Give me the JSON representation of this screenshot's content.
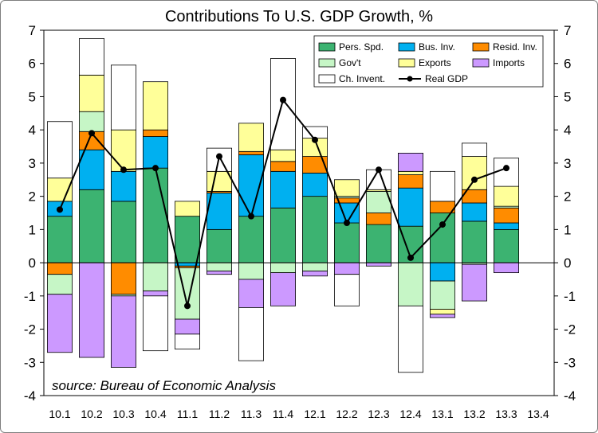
{
  "chart_data": {
    "type": "bar",
    "stacked": true,
    "title": "Contributions To U.S. GDP Growth, %",
    "xlabel": "",
    "ylabel": "",
    "ylim": [
      -4,
      7
    ],
    "yticks": [
      -4,
      -3,
      -2,
      -1,
      0,
      1,
      2,
      3,
      4,
      5,
      6,
      7
    ],
    "grid": false,
    "legend_position": "top-right",
    "categories": [
      "10.1",
      "10.2",
      "10.3",
      "10.4",
      "11.1",
      "11.2",
      "11.3",
      "11.4",
      "12.1",
      "12.2",
      "12.3",
      "12.4",
      "13.1",
      "13.2",
      "13.3",
      "13.4"
    ],
    "series": [
      {
        "name": "Pers. Spd.",
        "color": "#3cb371",
        "values": [
          1.4,
          2.2,
          1.85,
          2.85,
          1.4,
          1.0,
          1.4,
          1.65,
          2.0,
          1.2,
          1.15,
          1.1,
          1.5,
          1.25,
          1.0,
          null
        ]
      },
      {
        "name": "Bus. Inv.",
        "color": "#00b0f0",
        "values": [
          0.45,
          1.2,
          0.9,
          0.95,
          -0.1,
          1.1,
          1.85,
          1.1,
          0.7,
          0.6,
          0.0,
          1.15,
          -0.55,
          0.55,
          0.2,
          null
        ]
      },
      {
        "name": "Resid. Inv.",
        "color": "#ff8c00",
        "values": [
          -0.35,
          0.55,
          -0.95,
          0.2,
          -0.05,
          0.05,
          0.1,
          0.3,
          0.5,
          0.15,
          0.35,
          0.4,
          0.35,
          0.4,
          0.45,
          null
        ]
      },
      {
        "name": "Gov't",
        "color": "#c6f6c6",
        "values": [
          -0.6,
          0.6,
          -0.05,
          -0.85,
          -1.55,
          -0.25,
          -0.5,
          -0.3,
          -0.25,
          0.05,
          0.65,
          -1.3,
          -0.85,
          -0.05,
          0.05,
          null
        ]
      },
      {
        "name": "Exports",
        "color": "#ffff99",
        "values": [
          0.7,
          1.1,
          1.25,
          1.45,
          0.45,
          0.6,
          0.85,
          0.35,
          0.55,
          0.5,
          0.05,
          0.1,
          -0.15,
          1.0,
          0.6,
          null
        ]
      },
      {
        "name": "Imports",
        "color": "#cc99ff",
        "values": [
          -1.75,
          -2.85,
          -2.15,
          -0.15,
          -0.45,
          -0.1,
          -0.85,
          -1.0,
          -0.15,
          -0.35,
          -0.1,
          0.55,
          -0.1,
          -1.1,
          -0.3,
          null
        ]
      },
      {
        "name": "Ch. Invent.",
        "color": "#ffffff",
        "values": [
          1.7,
          1.1,
          1.95,
          -1.65,
          -0.45,
          0.7,
          -1.6,
          2.75,
          0.35,
          -0.95,
          0.6,
          -2.0,
          0.9,
          0.4,
          0.85,
          null
        ]
      }
    ],
    "line_series": {
      "name": "Real GDP",
      "color": "#000000",
      "values": [
        1.6,
        3.9,
        2.8,
        2.85,
        -1.3,
        3.2,
        1.4,
        4.9,
        3.7,
        1.2,
        2.8,
        0.15,
        1.15,
        2.5,
        2.85,
        null
      ]
    },
    "annotation": "source: Bureau of Economic Analysis"
  }
}
